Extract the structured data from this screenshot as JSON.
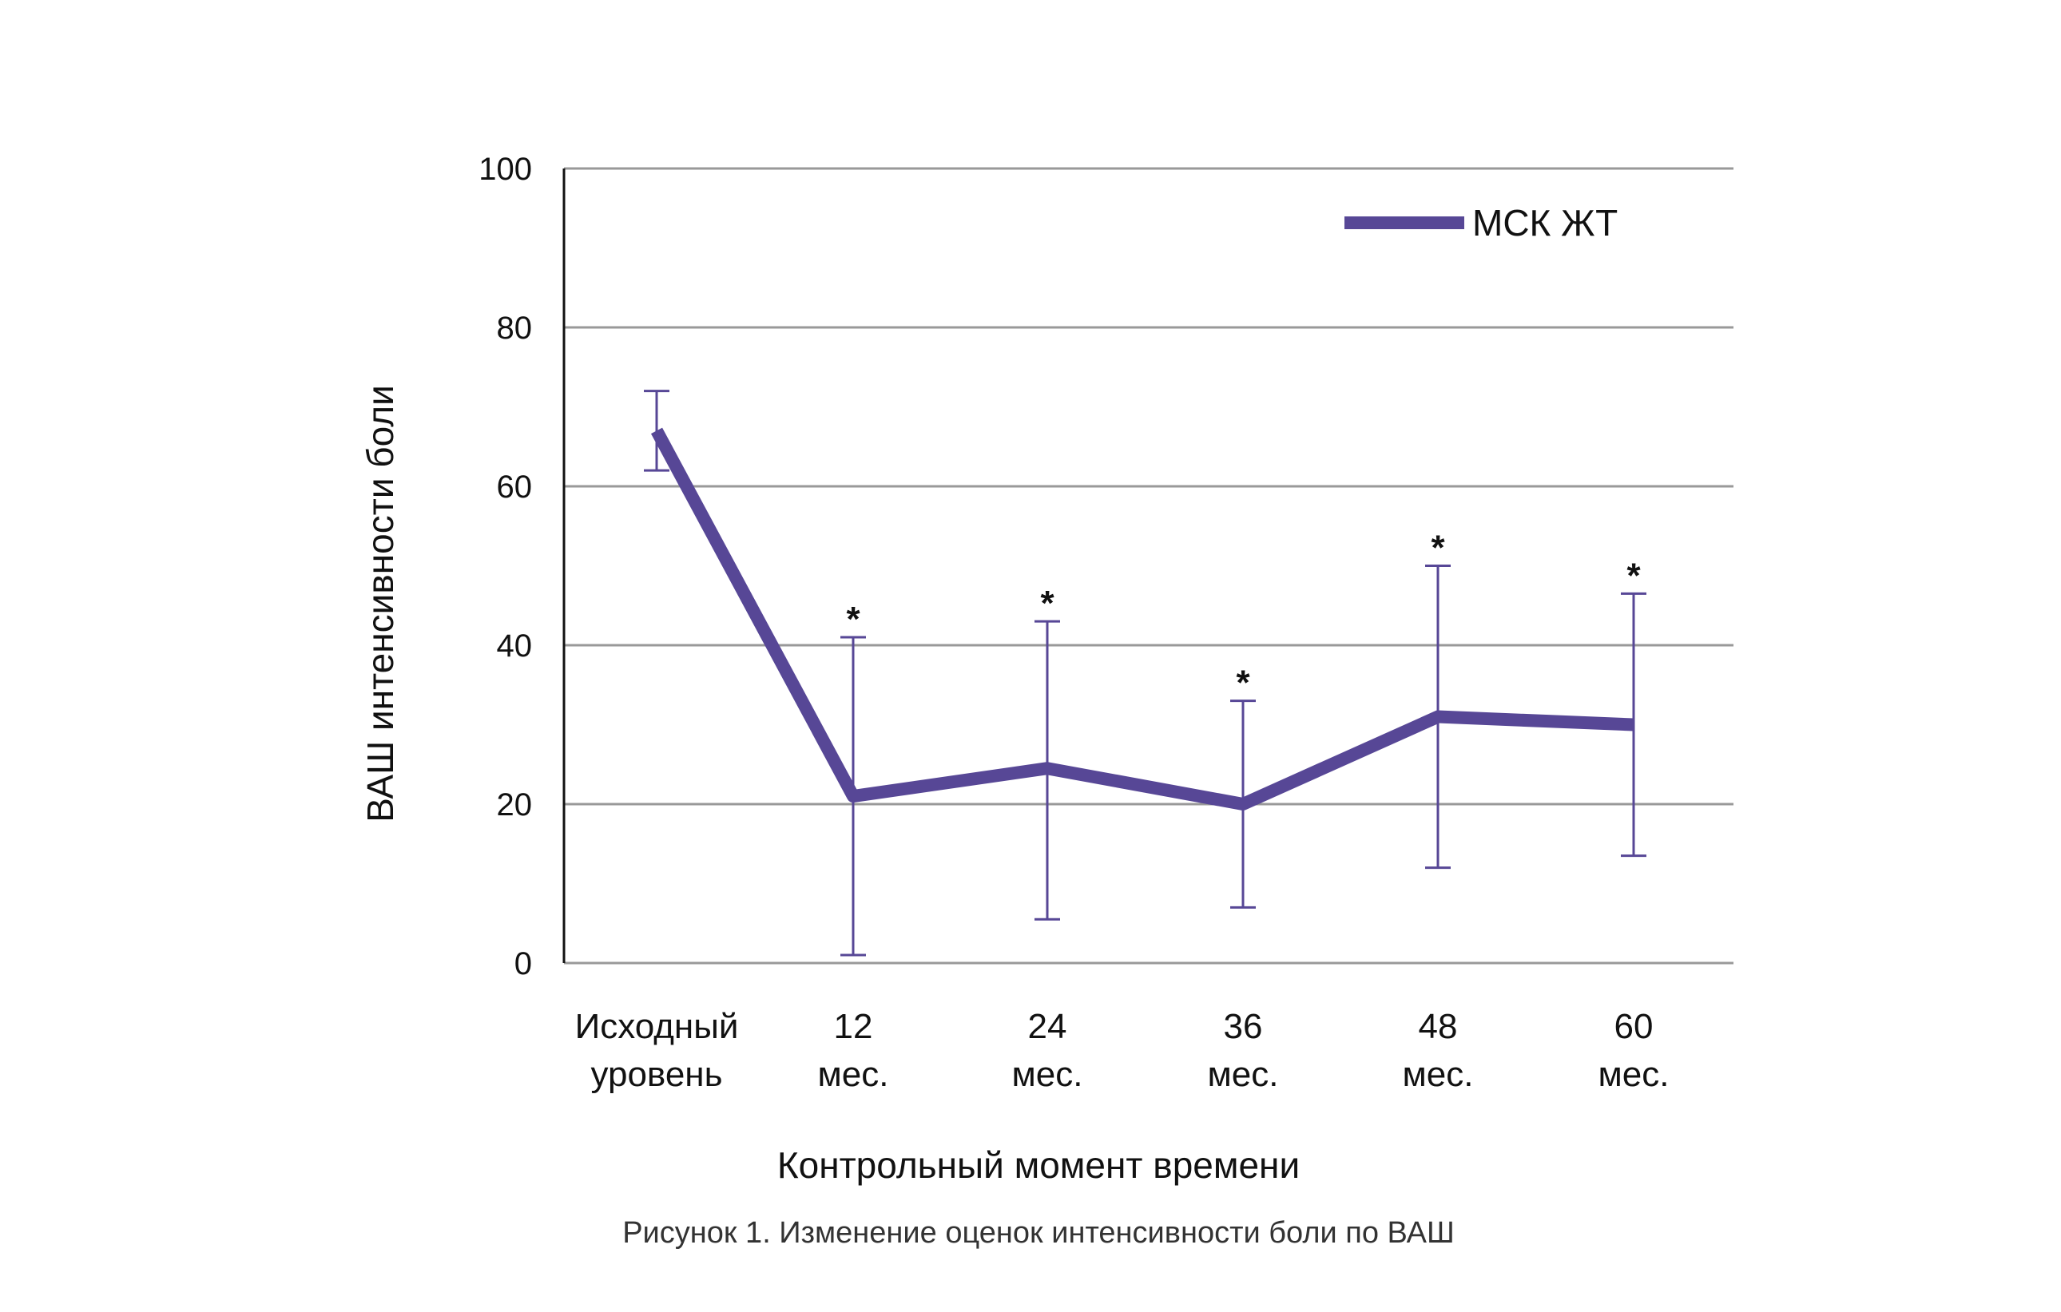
{
  "chart_data": {
    "type": "line",
    "categories": [
      [
        "Исходный",
        "уровень"
      ],
      [
        "12",
        "мес."
      ],
      [
        "24",
        "мес."
      ],
      [
        "36",
        "мес."
      ],
      [
        "48",
        "мес."
      ],
      [
        "60",
        "мес."
      ]
    ],
    "series": [
      {
        "name": "МСК ЖТ",
        "values": [
          67,
          21,
          24.5,
          20,
          31,
          30
        ],
        "error_low": [
          62,
          1,
          5.5,
          7,
          12,
          13.5
        ],
        "error_high": [
          72,
          41,
          43,
          33,
          50,
          46.5
        ],
        "significance": [
          "",
          "*",
          "*",
          "*",
          "*",
          "*"
        ],
        "color": "#574796"
      }
    ],
    "ylim": [
      0,
      100
    ],
    "yticks": [
      0,
      20,
      40,
      60,
      80,
      100
    ],
    "ylabel": "ВАШ интенсивности боли",
    "xlabel": "Контрольный момент времени",
    "grid": true,
    "legend": "top-right",
    "caption": "Рисунок 1. Изменение оценок интенсивности боли по ВАШ",
    "colors": {
      "grid": "#999999",
      "axis": "#111111",
      "series": "#574796"
    }
  }
}
